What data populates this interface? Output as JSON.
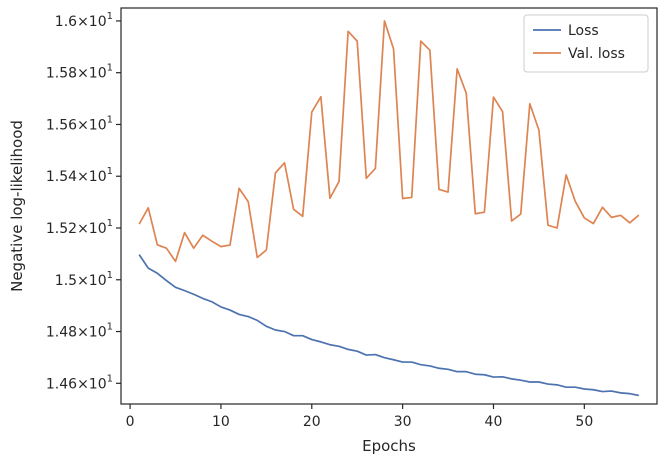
{
  "chart_data": {
    "type": "line",
    "xlabel": "Epochs",
    "ylabel": "Negative log-likelihood",
    "xlim": [
      -1,
      58
    ],
    "ylim": [
      14.52,
      16.05
    ],
    "x_ticks": [
      {
        "value": 0,
        "label": "0"
      },
      {
        "value": 10,
        "label": "10"
      },
      {
        "value": 20,
        "label": "20"
      },
      {
        "value": 30,
        "label": "30"
      },
      {
        "value": 40,
        "label": "40"
      },
      {
        "value": 50,
        "label": "50"
      }
    ],
    "y_ticks": [
      {
        "value": 14.6,
        "mant": "1.46",
        "base": "10",
        "exp": "1"
      },
      {
        "value": 14.8,
        "mant": "1.48",
        "base": "10",
        "exp": "1"
      },
      {
        "value": 15.0,
        "mant": "1.5",
        "base": "10",
        "exp": "1"
      },
      {
        "value": 15.2,
        "mant": "1.52",
        "base": "10",
        "exp": "1"
      },
      {
        "value": 15.4,
        "mant": "1.54",
        "base": "10",
        "exp": "1"
      },
      {
        "value": 15.6,
        "mant": "1.56",
        "base": "10",
        "exp": "1"
      },
      {
        "value": 15.8,
        "mant": "1.58",
        "base": "10",
        "exp": "1"
      },
      {
        "value": 16.0,
        "mant": "1.6",
        "base": "10",
        "exp": "1"
      }
    ],
    "legend_position": "top-right",
    "series": [
      {
        "name": "Loss",
        "color": "#4c72b0",
        "x": [
          1,
          2,
          3,
          4,
          5,
          6,
          7,
          8,
          9,
          10,
          11,
          12,
          13,
          14,
          15,
          16,
          17,
          18,
          19,
          20,
          21,
          22,
          23,
          24,
          25,
          26,
          27,
          28,
          29,
          30,
          31,
          32,
          33,
          34,
          35,
          36,
          37,
          38,
          39,
          40,
          41,
          42,
          43,
          44,
          45,
          46,
          47,
          48,
          49,
          50,
          51,
          52,
          53,
          54,
          55,
          56
        ],
        "values": [
          15.097,
          15.045,
          15.025,
          14.997,
          14.971,
          14.958,
          14.944,
          14.928,
          14.915,
          14.895,
          14.883,
          14.866,
          14.858,
          14.843,
          14.82,
          14.806,
          14.8,
          14.784,
          14.784,
          14.769,
          14.76,
          14.749,
          14.743,
          14.731,
          14.724,
          14.709,
          14.711,
          14.699,
          14.691,
          14.682,
          14.682,
          14.672,
          14.667,
          14.658,
          14.654,
          14.645,
          14.645,
          14.635,
          14.633,
          14.624,
          14.625,
          14.617,
          14.612,
          14.605,
          14.605,
          14.597,
          14.594,
          14.585,
          14.585,
          14.578,
          14.575,
          14.568,
          14.57,
          14.563,
          14.56,
          14.553
        ]
      },
      {
        "name": "Val. loss",
        "color": "#dd8452",
        "x": [
          1,
          2,
          3,
          4,
          5,
          6,
          7,
          8,
          9,
          10,
          11,
          12,
          13,
          14,
          15,
          16,
          17,
          18,
          19,
          20,
          21,
          22,
          23,
          24,
          25,
          26,
          27,
          28,
          29,
          30,
          31,
          32,
          33,
          34,
          35,
          36,
          37,
          38,
          39,
          40,
          41,
          42,
          43,
          44,
          45,
          46,
          47,
          48,
          49,
          50,
          51,
          52,
          53,
          54,
          55,
          56
        ],
        "values": [
          15.215,
          15.278,
          15.135,
          15.122,
          15.071,
          15.182,
          15.122,
          15.172,
          15.149,
          15.128,
          15.134,
          15.353,
          15.302,
          15.086,
          15.115,
          15.413,
          15.452,
          15.272,
          15.245,
          15.648,
          15.707,
          15.315,
          15.38,
          15.96,
          15.922,
          15.392,
          15.43,
          16.0,
          15.892,
          15.314,
          15.318,
          15.922,
          15.887,
          15.349,
          15.339,
          15.815,
          15.721,
          15.255,
          15.261,
          15.706,
          15.65,
          15.227,
          15.254,
          15.68,
          15.578,
          15.211,
          15.2,
          15.405,
          15.303,
          15.239,
          15.217,
          15.28,
          15.241,
          15.249,
          15.22,
          15.25
        ]
      }
    ]
  }
}
